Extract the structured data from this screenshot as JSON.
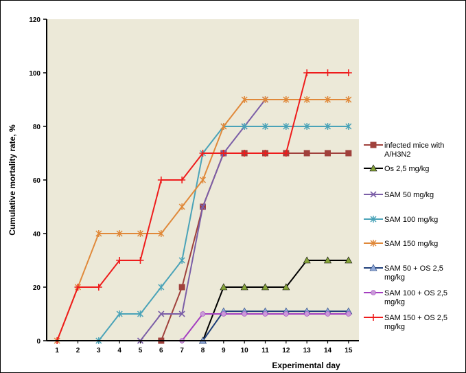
{
  "chart_data": {
    "type": "line",
    "title": "",
    "xlabel": "Experimental day",
    "ylabel": "Cumulative mortality rate, %",
    "x": [
      1,
      2,
      3,
      4,
      5,
      6,
      7,
      8,
      9,
      10,
      11,
      12,
      13,
      14,
      15
    ],
    "xlim": [
      0.5,
      15.5
    ],
    "ylim": [
      0,
      120
    ],
    "yticks": [
      0,
      20,
      40,
      60,
      80,
      100,
      120
    ],
    "grid": false,
    "plot_background": "#ece9d8",
    "legend_position": "right",
    "series": [
      {
        "name": "infected mice with A/H3N2",
        "color": "#a0413c",
        "marker": "square",
        "points": [
          [
            6,
            0
          ],
          [
            7,
            20
          ],
          [
            8,
            50
          ],
          [
            9,
            70
          ],
          [
            10,
            70
          ],
          [
            11,
            70
          ],
          [
            12,
            70
          ],
          [
            13,
            70
          ],
          [
            14,
            70
          ],
          [
            15,
            70
          ]
        ]
      },
      {
        "name": "Os 2,5 mg/kg",
        "color": "#000000",
        "marker_color": "#86a43a",
        "marker": "triangle",
        "points": [
          [
            8,
            0
          ],
          [
            9,
            20
          ],
          [
            10,
            20
          ],
          [
            11,
            20
          ],
          [
            12,
            20
          ],
          [
            13,
            30
          ],
          [
            14,
            30
          ],
          [
            15,
            30
          ]
        ]
      },
      {
        "name": "SAM 50 mg/kg",
        "color": "#7b5ea7",
        "marker": "x",
        "points": [
          [
            5,
            0
          ],
          [
            6,
            10
          ],
          [
            7,
            10
          ],
          [
            8,
            50
          ],
          [
            9,
            70
          ],
          [
            10,
            80
          ],
          [
            11,
            90
          ]
        ]
      },
      {
        "name": "SAM 100 mg/kg",
        "color": "#4aa3b8",
        "marker": "star",
        "points": [
          [
            3,
            0
          ],
          [
            4,
            10
          ],
          [
            5,
            10
          ],
          [
            6,
            20
          ],
          [
            7,
            30
          ],
          [
            8,
            70
          ],
          [
            9,
            80
          ],
          [
            10,
            80
          ],
          [
            11,
            80
          ],
          [
            12,
            80
          ],
          [
            13,
            80
          ],
          [
            14,
            80
          ],
          [
            15,
            80
          ]
        ]
      },
      {
        "name": "SAM 150 mg/kg",
        "color": "#e0893a",
        "marker": "star",
        "points": [
          [
            1,
            0
          ],
          [
            2,
            20
          ],
          [
            3,
            40
          ],
          [
            4,
            40
          ],
          [
            5,
            40
          ],
          [
            6,
            40
          ],
          [
            7,
            50
          ],
          [
            8,
            60
          ],
          [
            9,
            80
          ],
          [
            10,
            90
          ],
          [
            11,
            90
          ],
          [
            12,
            90
          ],
          [
            13,
            90
          ],
          [
            14,
            90
          ],
          [
            15,
            90
          ]
        ]
      },
      {
        "name": "SAM 50 + OS 2,5 mg/kg",
        "color": "#1f3f7a",
        "marker_color": "#8fa8d8",
        "marker": "triangle",
        "points": [
          [
            8,
            0
          ],
          [
            9,
            11
          ],
          [
            10,
            11
          ],
          [
            11,
            11
          ],
          [
            12,
            11
          ],
          [
            13,
            11
          ],
          [
            14,
            11
          ],
          [
            15,
            11
          ]
        ]
      },
      {
        "name": "SAM 100 + OS 2,5 mg/kg",
        "color": "#a43ec0",
        "marker_color": "#c99ad8",
        "marker": "circle",
        "points": [
          [
            7,
            0
          ],
          [
            8,
            10
          ],
          [
            9,
            10
          ],
          [
            10,
            10
          ],
          [
            11,
            10
          ],
          [
            12,
            10
          ],
          [
            13,
            10
          ],
          [
            14,
            10
          ],
          [
            15,
            10
          ]
        ]
      },
      {
        "name": "SAM 150 + OS 2,5 mg/kg",
        "color": "#ee1c1c",
        "marker": "plus",
        "points": [
          [
            1,
            0
          ],
          [
            2,
            20
          ],
          [
            3,
            20
          ],
          [
            4,
            30
          ],
          [
            5,
            30
          ],
          [
            6,
            60
          ],
          [
            7,
            60
          ],
          [
            8,
            70
          ],
          [
            9,
            70
          ],
          [
            10,
            70
          ],
          [
            11,
            70
          ],
          [
            12,
            70
          ],
          [
            13,
            100
          ],
          [
            14,
            100
          ],
          [
            15,
            100
          ]
        ]
      }
    ]
  },
  "legend": [
    {
      "lines": [
        "infected mice with",
        "A/H3N2"
      ]
    },
    {
      "lines": [
        "Os 2,5 mg/kg"
      ]
    },
    {
      "lines": [
        "SAM  50 mg/kg"
      ]
    },
    {
      "lines": [
        "SAM  100 mg/kg"
      ]
    },
    {
      "lines": [
        "SAM  150 mg/kg"
      ]
    },
    {
      "lines": [
        "SAM  50 + OS 2,5",
        "mg/kg"
      ]
    },
    {
      "lines": [
        "SAM  100 + OS 2,5",
        "mg/kg"
      ]
    },
    {
      "lines": [
        "SAM  150 + OS 2,5",
        "mg/kg"
      ]
    }
  ]
}
